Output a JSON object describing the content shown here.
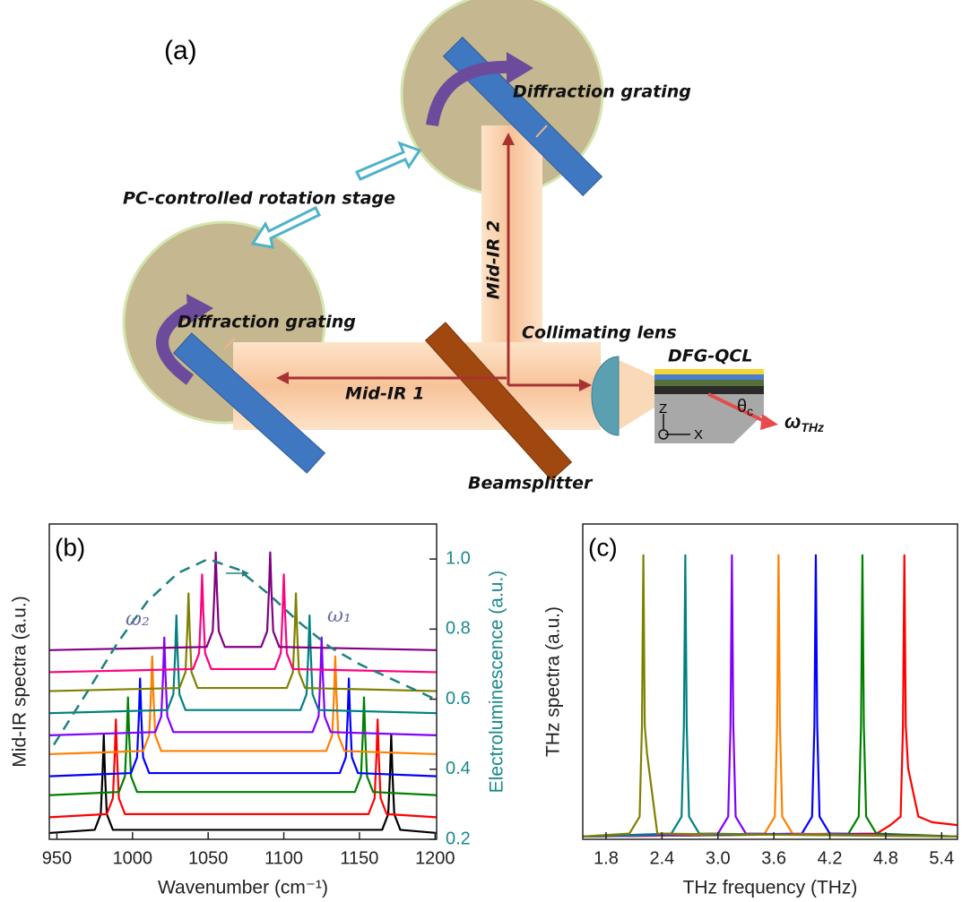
{
  "diagram": {
    "panel_label": "(a)",
    "grating_top": "Diffraction grating",
    "grating_bottom": "Diffraction grating",
    "rotation_stage": "PC-controlled rotation stage",
    "beam_2": "Mid-IR 2",
    "beam_1": "Mid-IR 1",
    "lens": "Collimating lens",
    "device": "DFG-QCL",
    "beamsplitter": "Beamsplitter",
    "angle": {
      "symbol": "θ",
      "subscript": "c"
    },
    "output": {
      "symbol": "ω",
      "subscript": "THz"
    },
    "axis_z": "Z",
    "axis_x": "X"
  },
  "chart_data": [
    {
      "type": "line",
      "panel_label": "(b)",
      "xlabel": "Wavenumber (cm⁻¹)",
      "ylabel": "Mid-IR spectra (a.u.)",
      "y2label": "Electroluminescence (a.u.)",
      "xlim": [
        945,
        1201
      ],
      "xticks": [
        950,
        1000,
        1050,
        1100,
        1150,
        1200
      ],
      "ylim": [
        0,
        10
      ],
      "y2lim": [
        0.2,
        1.1
      ],
      "y2ticks": [
        0.2,
        0.4,
        0.6,
        0.8,
        {
          "value": 1,
          "label": "1.0"
        }
      ],
      "annotations": [
        "ω₂",
        "ω₁"
      ],
      "series": [
        {
          "color": "#000000",
          "x": [
            945,
            975,
            979,
            980.2,
            981,
            981.8,
            983,
            987,
            1165,
            1169,
            1170.2,
            1171,
            1171.8,
            1173,
            1177,
            1201
          ],
          "values": [
            0.2,
            0.3,
            0.8,
            2.1,
            3.3,
            2.1,
            0.8,
            0.3,
            0.3,
            0.8,
            2.1,
            3.3,
            2.1,
            0.8,
            0.3,
            0.2
          ]
        },
        {
          "color": "#ff0000",
          "x": [
            945,
            983,
            987,
            988.2,
            989,
            989.8,
            991,
            995,
            1156,
            1160,
            1161.2,
            1162,
            1162.8,
            1164,
            1168,
            1201
          ],
          "values": [
            0.7,
            0.8,
            1.3,
            2.6,
            3.8,
            2.6,
            1.3,
            0.8,
            0.8,
            1.3,
            2.6,
            3.8,
            2.6,
            1.3,
            0.8,
            0.7
          ]
        },
        {
          "color": "#008000",
          "x": [
            945,
            991,
            995,
            996.2,
            997,
            997.8,
            999,
            1003,
            1147,
            1151,
            1152.2,
            1153,
            1153.8,
            1155,
            1159,
            1201
          ],
          "values": [
            1.4,
            1.5,
            2.0,
            3.3,
            4.5,
            3.3,
            2.0,
            1.5,
            1.5,
            2.0,
            3.3,
            4.5,
            3.3,
            2.0,
            1.5,
            1.4
          ]
        },
        {
          "color": "#0000ff",
          "x": [
            945,
            999,
            1003,
            1004.2,
            1005,
            1005.8,
            1007,
            1011,
            1137,
            1141,
            1142.2,
            1143,
            1143.8,
            1145,
            1149,
            1201
          ],
          "values": [
            2.0,
            2.1,
            2.6,
            3.9,
            5.1,
            3.9,
            2.6,
            2.1,
            2.1,
            2.6,
            3.9,
            5.1,
            3.9,
            2.6,
            2.1,
            2.0
          ]
        },
        {
          "color": "#ff8000",
          "x": [
            945,
            1007,
            1011,
            1012.2,
            1013,
            1013.8,
            1015,
            1019,
            1128,
            1132,
            1133.2,
            1134,
            1134.8,
            1136,
            1140,
            1201
          ],
          "values": [
            2.7,
            2.8,
            3.3,
            4.6,
            5.8,
            4.6,
            3.3,
            2.8,
            2.8,
            3.3,
            4.6,
            5.8,
            4.6,
            3.3,
            2.8,
            2.7
          ]
        },
        {
          "color": "#8000ff",
          "x": [
            945,
            1015,
            1019,
            1020.2,
            1021,
            1021.8,
            1023,
            1027,
            1119,
            1123,
            1124.2,
            1125,
            1125.8,
            1127,
            1131,
            1201
          ],
          "values": [
            3.3,
            3.4,
            3.9,
            5.2,
            6.4,
            5.2,
            3.9,
            3.4,
            3.4,
            3.9,
            5.2,
            6.4,
            5.2,
            3.9,
            3.4,
            3.3
          ]
        },
        {
          "color": "#008080",
          "x": [
            945,
            1023,
            1027,
            1028.2,
            1029,
            1029.8,
            1031,
            1035,
            1111,
            1115,
            1116.2,
            1117,
            1117.8,
            1119,
            1123,
            1201
          ],
          "values": [
            4.0,
            4.1,
            4.6,
            5.9,
            7.1,
            5.9,
            4.6,
            4.1,
            4.1,
            4.6,
            5.9,
            7.1,
            5.9,
            4.6,
            4.1,
            4.0
          ]
        },
        {
          "color": "#808000",
          "x": [
            945,
            1031,
            1035,
            1036.2,
            1037,
            1037.8,
            1039,
            1043,
            1102,
            1106,
            1107.2,
            1108,
            1108.8,
            1110,
            1114,
            1201
          ],
          "values": [
            4.7,
            4.8,
            5.3,
            6.6,
            7.8,
            6.6,
            5.3,
            4.8,
            4.8,
            5.3,
            6.6,
            7.8,
            6.6,
            5.3,
            4.8,
            4.7
          ]
        },
        {
          "color": "#ff0080",
          "x": [
            945,
            1040,
            1044,
            1045.2,
            1046,
            1046.8,
            1048,
            1052,
            1094,
            1098,
            1099.2,
            1100,
            1100.8,
            1102,
            1106,
            1201
          ],
          "values": [
            5.3,
            5.4,
            5.9,
            7.2,
            8.4,
            7.2,
            5.9,
            5.4,
            5.4,
            5.9,
            7.2,
            8.4,
            7.2,
            5.9,
            5.4,
            5.3
          ]
        },
        {
          "color": "#800080",
          "x": [
            945,
            1049,
            1053,
            1054.2,
            1055,
            1055.8,
            1057,
            1061,
            1085,
            1089,
            1090.2,
            1091,
            1091.8,
            1093,
            1097,
            1201
          ],
          "values": [
            6.0,
            6.1,
            6.6,
            7.9,
            9.1,
            7.9,
            6.6,
            6.1,
            6.1,
            6.6,
            7.9,
            9.1,
            7.9,
            6.6,
            6.1,
            6.0
          ]
        },
        {
          "color": "#1f8080",
          "style": "dashed",
          "axis": "y2",
          "x": [
            948,
            970,
            990,
            1010,
            1030,
            1050,
            1070,
            1090,
            1110,
            1130,
            1150,
            1170,
            1190,
            1200
          ],
          "values": [
            0.47,
            0.62,
            0.76,
            0.88,
            0.96,
            1.0,
            0.97,
            0.9,
            0.82,
            0.75,
            0.7,
            0.66,
            0.62,
            0.6
          ]
        }
      ]
    },
    {
      "type": "line",
      "panel_label": "(c)",
      "xlabel": "THz frequency (THz)",
      "ylabel": "THz spectra (a.u.)",
      "xlim": [
        1.55,
        5.57
      ],
      "xticks": [
        1.8,
        2.4,
        {
          "value": 3,
          "label": "3.0"
        },
        3.6,
        4.2,
        4.8,
        5.4
      ],
      "ylim": [
        0,
        1.11
      ],
      "series": [
        {
          "color": "#ff0000",
          "x": [
            1.55,
            4.7,
            4.85,
            4.96,
            4.985,
            5.0,
            5.015,
            5.04,
            5.15,
            5.3,
            5.57
          ],
          "values": [
            0.01,
            0.02,
            0.05,
            0.08,
            0.4,
            1.0,
            0.4,
            0.25,
            0.08,
            0.06,
            0.05
          ]
        },
        {
          "color": "#008000",
          "x": [
            1.55,
            4.4,
            4.51,
            4.535,
            4.55,
            4.565,
            4.59,
            4.7,
            5.57
          ],
          "values": [
            0.01,
            0.02,
            0.08,
            0.4,
            1.0,
            0.4,
            0.08,
            0.02,
            0.01
          ]
        },
        {
          "color": "#0000ff",
          "x": [
            1.55,
            3.9,
            4.01,
            4.035,
            4.05,
            4.065,
            4.09,
            4.2,
            5.57
          ],
          "values": [
            0.01,
            0.02,
            0.08,
            0.4,
            1.0,
            0.4,
            0.08,
            0.02,
            0.01
          ]
        },
        {
          "color": "#ff8000",
          "x": [
            1.55,
            3.5,
            3.61,
            3.635,
            3.65,
            3.665,
            3.69,
            3.8,
            5.57
          ],
          "values": [
            0.01,
            0.02,
            0.08,
            0.4,
            1.0,
            0.4,
            0.08,
            0.02,
            0.01
          ]
        },
        {
          "color": "#8000ff",
          "x": [
            1.55,
            3.0,
            3.11,
            3.135,
            3.15,
            3.165,
            3.19,
            3.3,
            5.57
          ],
          "values": [
            0.01,
            0.02,
            0.08,
            0.4,
            1.0,
            0.4,
            0.08,
            0.02,
            0.01
          ]
        },
        {
          "color": "#008080",
          "x": [
            1.55,
            2.5,
            2.61,
            2.635,
            2.65,
            2.665,
            2.69,
            2.8,
            5.57
          ],
          "values": [
            0.01,
            0.02,
            0.08,
            0.4,
            1.0,
            0.4,
            0.08,
            0.02,
            0.01
          ]
        },
        {
          "color": "#808000",
          "x": [
            1.55,
            2.05,
            2.16,
            2.185,
            2.2,
            2.215,
            2.24,
            2.35,
            5.57
          ],
          "values": [
            0.01,
            0.02,
            0.08,
            0.4,
            1.0,
            0.4,
            0.3,
            0.02,
            0.01
          ]
        }
      ]
    }
  ]
}
